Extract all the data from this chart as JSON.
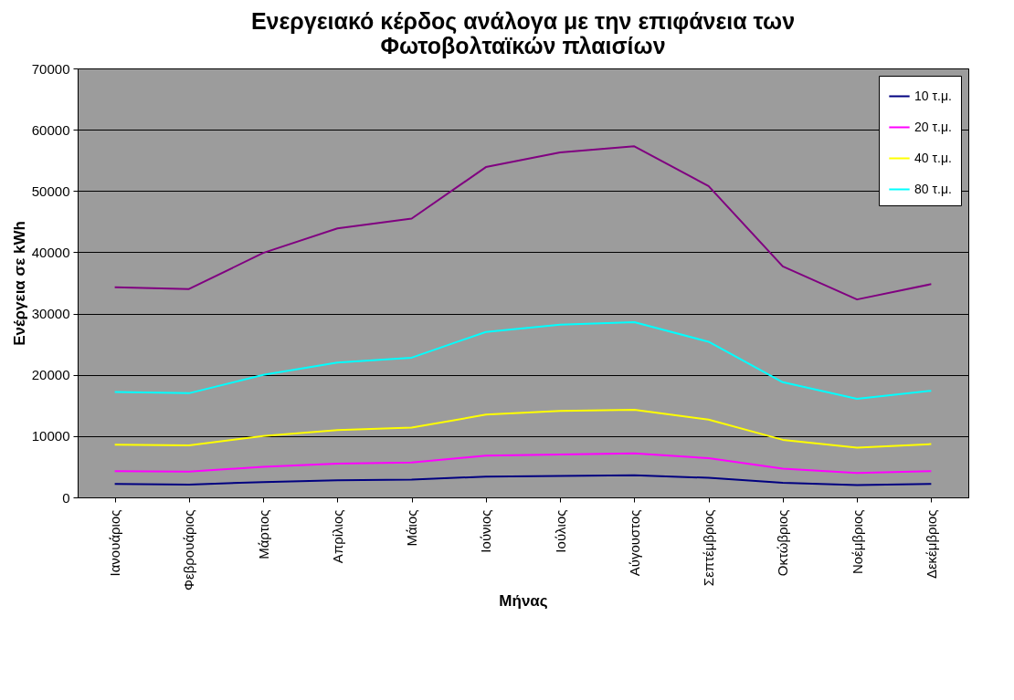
{
  "chart_data": {
    "type": "line",
    "title": [
      "Ενεργειακό κέρδος ανάλογα με την επιφάνεια των",
      "Φωτοβολταϊκών πλαισίων"
    ],
    "xlabel": "Μήνας",
    "ylabel": "Ενέργεια σε kWh",
    "categories": [
      "Ιανουάριος",
      "Φεβρουάριος",
      "Μάρτιος",
      "Απρίλιος",
      "Μάιος",
      "Ιούνιος",
      "Ιούλιος",
      "Αύγουστος",
      "Σεπτέμβριος",
      "Οκτώβριος",
      "Νοέμβριος",
      "Δεκέμβριος"
    ],
    "series": [
      {
        "name": "10 τ.μ.",
        "color": "#000080",
        "values": [
          2200,
          2100,
          2500,
          2800,
          2900,
          3400,
          3500,
          3600,
          3200,
          2400,
          2000,
          2200
        ]
      },
      {
        "name": "20 τ.μ.",
        "color": "#ff00ff",
        "values": [
          4300,
          4200,
          5000,
          5500,
          5700,
          6800,
          7000,
          7200,
          6400,
          4700,
          4000,
          4300
        ]
      },
      {
        "name": "40 τ.μ.",
        "color": "#ffff00",
        "values": [
          8600,
          8500,
          10000,
          11000,
          11400,
          13500,
          14100,
          14300,
          12700,
          9400,
          8100,
          8700
        ]
      },
      {
        "name": "80 τ.μ.",
        "color": "#00ffff",
        "values": [
          17200,
          17000,
          20000,
          22000,
          22800,
          27000,
          28200,
          28600,
          25400,
          18800,
          16100,
          17400
        ]
      },
      {
        "color": "#800080",
        "values": [
          34300,
          34000,
          39900,
          43900,
          45500,
          53900,
          56300,
          57300,
          50800,
          37700,
          32300,
          34800
        ]
      }
    ],
    "ylim": [
      0,
      70000
    ],
    "yticks": [
      0,
      10000,
      20000,
      30000,
      40000,
      50000,
      60000,
      70000
    ],
    "grid": "y",
    "legend": "top right",
    "marker": "none",
    "line_style": "solid"
  }
}
